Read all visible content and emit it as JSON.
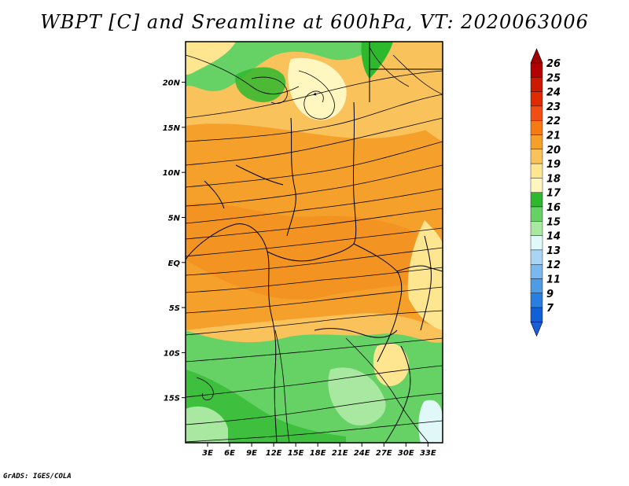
{
  "title": "WBPT [C] and Sreamline at 600hPa, VT: 2020063006",
  "credit": "GrADS: IGES/COLA",
  "map": {
    "lat_labels": [
      {
        "label": "20N",
        "lat": 20
      },
      {
        "label": "15N",
        "lat": 15
      },
      {
        "label": "10N",
        "lat": 10
      },
      {
        "label": "5N",
        "lat": 5
      },
      {
        "label": "EQ",
        "lat": 0
      },
      {
        "label": "5S",
        "lat": -5
      },
      {
        "label": "10S",
        "lat": -10
      },
      {
        "label": "15S",
        "lat": -15
      }
    ],
    "lon_labels": [
      {
        "label": "3E",
        "lon": 3
      },
      {
        "label": "6E",
        "lon": 6
      },
      {
        "label": "9E",
        "lon": 9
      },
      {
        "label": "12E",
        "lon": 12
      },
      {
        "label": "15E",
        "lon": 15
      },
      {
        "label": "18E",
        "lon": 18
      },
      {
        "label": "21E",
        "lon": 21
      },
      {
        "label": "24E",
        "lon": 24
      },
      {
        "label": "27E",
        "lon": 27
      },
      {
        "label": "30E",
        "lon": 30
      },
      {
        "label": "33E",
        "lon": 33
      }
    ],
    "extent": {
      "lon_min": 0,
      "lon_max": 35,
      "lat_min": -20,
      "lat_max": 24.5
    }
  },
  "colorbar": {
    "levels": [
      {
        "label": "26",
        "color": "#b20000"
      },
      {
        "label": "25",
        "color": "#cc1a00"
      },
      {
        "label": "24",
        "color": "#e02b00"
      },
      {
        "label": "23",
        "color": "#f04e14"
      },
      {
        "label": "22",
        "color": "#f57a14"
      },
      {
        "label": "21",
        "color": "#f5a02a"
      },
      {
        "label": "20",
        "color": "#f9c25a"
      },
      {
        "label": "19",
        "color": "#fde68f"
      },
      {
        "label": "18",
        "color": "#fff6c0"
      },
      {
        "label": "17",
        "color": "#2eb82e"
      },
      {
        "label": "16",
        "color": "#66d266"
      },
      {
        "label": "15",
        "color": "#a8e8a0"
      },
      {
        "label": "14",
        "color": "#e0f8f8"
      },
      {
        "label": "13",
        "color": "#aad4f4"
      },
      {
        "label": "12",
        "color": "#7ab8ee"
      },
      {
        "label": "11",
        "color": "#4e9be6"
      },
      {
        "label": "9",
        "color": "#2a7ee0"
      },
      {
        "label": "7",
        "color": "#1060d8"
      }
    ],
    "top_color": "#a00000",
    "bottom_color": "#1b5fd8"
  }
}
